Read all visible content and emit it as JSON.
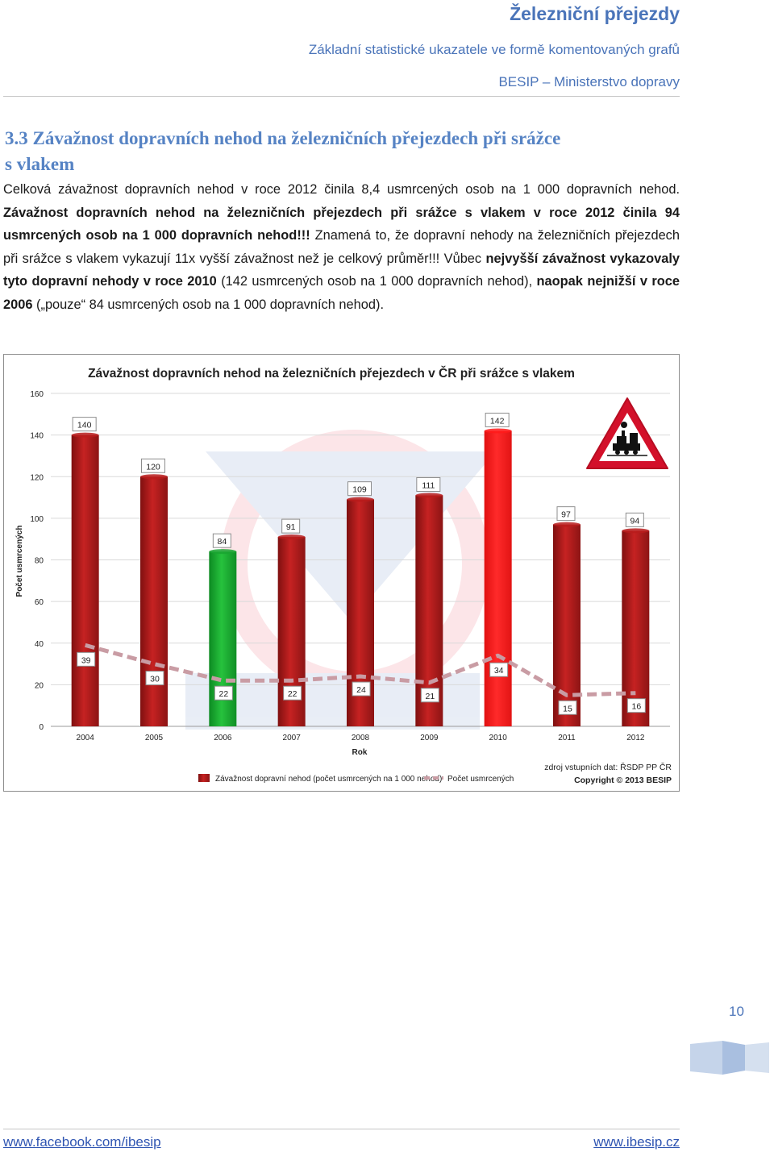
{
  "header": {
    "title": "Železniční přejezdy",
    "subtitle": "Základní statistické ukazatele ve formě komentovaných grafů",
    "org": "BESIP – Ministerstvo dopravy"
  },
  "section": {
    "heading_line1": "3.3 Závažnost dopravních nehod na železničních přejezdech při srážce",
    "heading_line2": "s vlakem",
    "p1": "Celková závažnost dopravních nehod v roce 2012 činila 8,4 usmrcených osob na 1 000 dopravních nehod. ",
    "p2": "Závažnost dopravních nehod na železničních přejezdech při srážce s vlakem v roce 2012 činila 94 usmrcených osob na 1 000 dopravních nehod!!!",
    "p3": " Znamená to, že dopravní nehody na železničních přejezdech při srážce s vlakem vykazují 11x vyšší závažnost než je celkový průměr!!! Vůbec ",
    "p4": "nejvyšší závažnost vykazovaly tyto dopravní nehody v roce 2010",
    "p5": " (142 usmrcených osob na 1 000 dopravních nehod), ",
    "p6": "naopak nejnižší v roce 2006",
    "p7": " („pouze“ 84 usmrcených osob na 1 000 dopravních nehod)."
  },
  "chart_data": {
    "type": "bar",
    "title": "Závažnost dopravních nehod na železničních přejezdech v ČR při srážce s vlakem",
    "xlabel": "Rok",
    "ylabel": "Počet usmrcených",
    "ylim": [
      0,
      160
    ],
    "yticks": [
      "0",
      "20",
      "40",
      "60",
      "80",
      "100",
      "120",
      "140",
      "160"
    ],
    "categories": [
      "2004",
      "2005",
      "2006",
      "2007",
      "2008",
      "2009",
      "2010",
      "2011",
      "2012"
    ],
    "series": [
      {
        "name": "Závažnost dopravní nehod (počet usmrcených na 1 000 nehod)",
        "type": "bar",
        "values": [
          140,
          120,
          84,
          91,
          109,
          111,
          142,
          97,
          94
        ],
        "labels": [
          "140",
          "120",
          "84",
          "91",
          "109",
          "111",
          "142",
          "97",
          "94"
        ],
        "colors": [
          "#b91c1c",
          "#b91c1c",
          "#1aa531",
          "#b91c1c",
          "#b91c1c",
          "#b91c1c",
          "#ff1a1a",
          "#b91c1c",
          "#b91c1c"
        ]
      },
      {
        "name": "Počet usmrcených",
        "type": "line",
        "dashed": true,
        "color": "#c99ca4",
        "values": [
          39,
          30,
          22,
          22,
          24,
          21,
          34,
          15,
          16
        ],
        "labels": [
          "39",
          "30",
          "22",
          "22",
          "24",
          "21",
          "34",
          "15",
          "16"
        ]
      }
    ],
    "legend_position": "bottom",
    "source_line1": "zdroj vstupních dat: ŘSDP PP ČR",
    "source_line2": "Copyright © 2013 BESIP",
    "colors": {
      "bar": "#b91c1c",
      "lowest": "#1aa531",
      "highest": "#ff1a1a",
      "line": "#c99ca4",
      "grid": "#d9d9d9"
    }
  },
  "footer": {
    "page_number": "10",
    "left_link": "www.facebook.com/ibesip",
    "right_link": "www.ibesip.cz"
  }
}
